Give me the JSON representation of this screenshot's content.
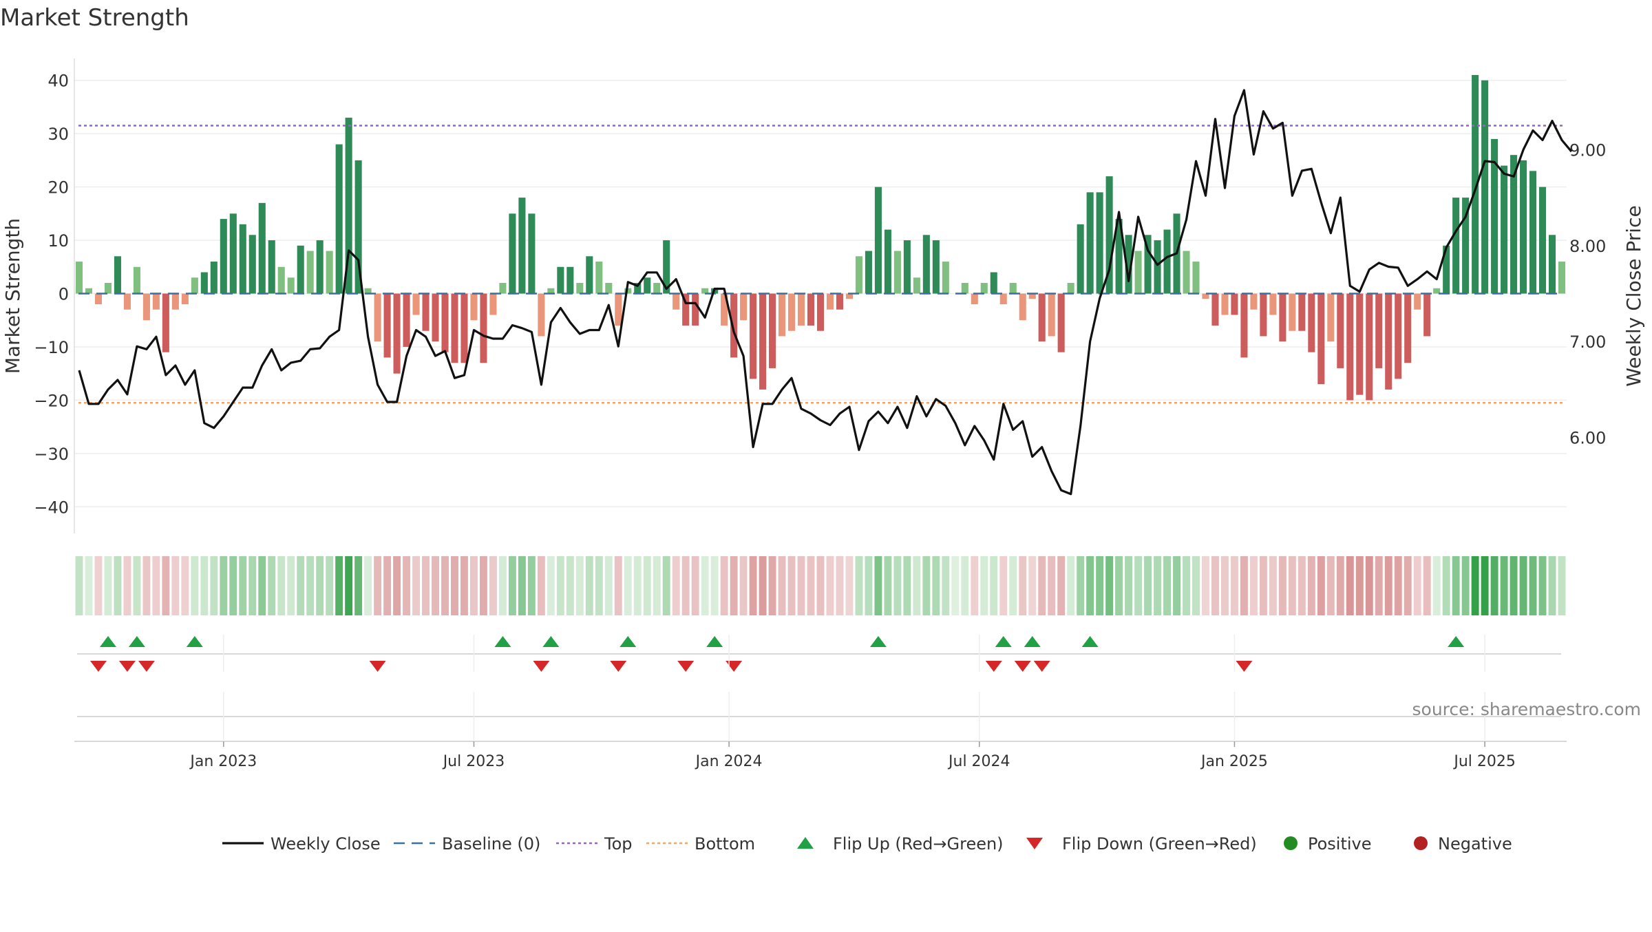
{
  "chart_data": {
    "type": "bar",
    "title": "Market Strength",
    "ylabel_left": "Market Strength",
    "ylabel_right": "Weekly Close Price",
    "ylim_left": [
      -45,
      45
    ],
    "ylim_right": [
      5.0,
      10.0
    ],
    "yticks_left": [
      40,
      30,
      20,
      10,
      0,
      -10,
      -20,
      -30,
      -40
    ],
    "ytick_labels_left": [
      "40",
      "30",
      "20",
      "10",
      "0",
      "−10",
      "−20",
      "−30",
      "−40"
    ],
    "yticks_right": [
      9.0,
      8.0,
      7.0,
      6.0
    ],
    "ytick_labels_right": [
      "9.00",
      "8.00",
      "7.00",
      "6.00"
    ],
    "x_tick_labels": [
      "Jan 2023",
      "Jul 2023",
      "Jan 2024",
      "Jul 2024",
      "Jan 2025",
      "Jul 2025"
    ],
    "x_tick_index": [
      15,
      41,
      67.5,
      93.5,
      120,
      146
    ],
    "top_line": 31.5,
    "bottom_line": -20.5,
    "baseline": 0,
    "strength": [
      6,
      1,
      -2,
      2,
      7,
      -3,
      5,
      -5,
      -3,
      -11,
      -3,
      -2,
      3,
      4,
      6,
      14,
      15,
      13,
      11,
      17,
      10,
      5,
      3,
      9,
      8,
      10,
      8,
      28,
      33,
      25,
      1,
      -9,
      -12,
      -15,
      -10,
      -4,
      -7,
      -9,
      -11,
      -13,
      -13,
      -5,
      -13,
      -4,
      2,
      15,
      18,
      15,
      -8,
      1,
      5,
      5,
      2,
      7,
      6,
      2,
      -6,
      1,
      2,
      3,
      2,
      10,
      -3,
      -6,
      -6,
      1,
      1,
      -6,
      -12,
      -5,
      -16,
      -18,
      -14,
      -8,
      -7,
      -6,
      -6,
      -7,
      -3,
      -3,
      -1,
      7,
      8,
      20,
      12,
      8,
      10,
      3,
      11,
      10,
      6,
      0,
      2,
      -2,
      2,
      4,
      -2,
      2,
      -5,
      -1,
      -9,
      -8,
      -11,
      2,
      13,
      19,
      19,
      22,
      14,
      11,
      8,
      11,
      10,
      12,
      15,
      8,
      6,
      -1,
      -6,
      -4,
      -4,
      -12,
      -3,
      -8,
      -4,
      -9,
      -7,
      -7,
      -11,
      -17,
      -9,
      -14,
      -20,
      -19,
      -20,
      -14,
      -18,
      -16,
      -13,
      -3,
      -8,
      1,
      9,
      18,
      18,
      41,
      40,
      29,
      24,
      26,
      25,
      23,
      20,
      11,
      6
    ],
    "weekly_close": [
      6.7,
      6.35,
      6.35,
      6.5,
      6.6,
      6.45,
      6.95,
      6.92,
      7.05,
      6.65,
      6.75,
      6.55,
      6.7,
      6.15,
      6.1,
      6.22,
      6.37,
      6.52,
      6.52,
      6.75,
      6.92,
      6.7,
      6.78,
      6.8,
      6.92,
      6.93,
      7.05,
      7.12,
      7.95,
      7.85,
      7.05,
      6.55,
      6.37,
      6.37,
      6.85,
      7.12,
      7.05,
      6.85,
      6.9,
      6.62,
      6.65,
      7.12,
      7.06,
      7.03,
      7.03,
      7.17,
      7.14,
      7.1,
      6.55,
      7.2,
      7.35,
      7.2,
      7.08,
      7.12,
      7.12,
      7.38,
      6.95,
      7.62,
      7.58,
      7.72,
      7.72,
      7.55,
      7.65,
      7.4,
      7.4,
      7.25,
      7.55,
      7.55,
      7.1,
      6.85,
      5.9,
      6.35,
      6.35,
      6.5,
      6.62,
      6.3,
      6.25,
      6.18,
      6.13,
      6.25,
      6.32,
      5.87,
      6.17,
      6.27,
      6.15,
      6.32,
      6.1,
      6.43,
      6.22,
      6.4,
      6.33,
      6.15,
      5.92,
      6.12,
      5.97,
      5.77,
      6.35,
      6.08,
      6.17,
      5.8,
      5.9,
      5.65,
      5.45,
      5.41,
      6.12,
      7.0,
      7.45,
      7.75,
      8.35,
      7.63,
      8.3,
      7.95,
      7.8,
      7.88,
      7.92,
      8.27,
      8.88,
      8.52,
      9.32,
      8.6,
      9.35,
      9.62,
      8.95,
      9.4,
      9.22,
      9.28,
      8.52,
      8.78,
      8.8,
      8.45,
      8.13,
      8.5,
      7.58,
      7.52,
      7.75,
      7.82,
      7.78,
      7.77,
      7.58,
      7.65,
      7.73,
      7.65,
      7.98,
      8.15,
      8.3,
      8.58,
      8.88,
      8.87,
      8.75,
      8.72,
      9.0,
      9.2,
      9.1,
      9.3,
      9.1,
      8.98
    ],
    "flip_up_index": [
      3,
      6,
      12,
      44,
      49,
      57,
      66,
      83,
      96,
      99,
      105,
      143
    ],
    "flip_down_index": [
      2,
      5,
      7,
      31,
      48,
      56,
      63,
      68,
      95,
      98,
      100,
      121
    ],
    "color_band_note": "rolling strength heat strip",
    "legend": [
      {
        "label": "Weekly Close",
        "type": "line",
        "color": "#111111"
      },
      {
        "label": "Baseline (0)",
        "type": "dash",
        "color": "#3a6fa0"
      },
      {
        "label": "Top",
        "type": "dot",
        "color": "#9467bd"
      },
      {
        "label": "Bottom",
        "type": "dot",
        "color": "#f4a460"
      },
      {
        "label": "Flip Up (Red→Green)",
        "type": "tri-up",
        "color": "#2ca02c"
      },
      {
        "label": "Flip Down (Green→Red)",
        "type": "tri-down",
        "color": "#d62728"
      },
      {
        "label": "Positive",
        "type": "circle",
        "color": "#228b22"
      },
      {
        "label": "Negative",
        "type": "circle",
        "color": "#b22222"
      }
    ],
    "source": "source: sharemaestro.com",
    "colors": {
      "pos_strong": "#2e8b57",
      "pos_weak": "#7fbf7f",
      "neg_strong": "#cd5c5c",
      "neg_weak": "#e9967a",
      "line": "#111111",
      "top": "#9467bd",
      "bottom": "#f4a460",
      "baseline": "#3a6fa0"
    }
  }
}
